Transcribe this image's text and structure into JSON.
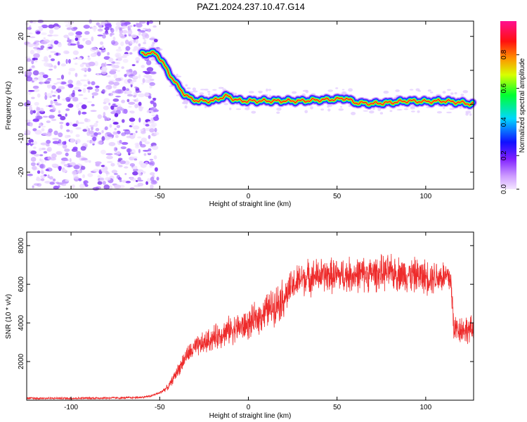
{
  "figure": {
    "title": "PAZ1.2024.237.10.47.G14"
  },
  "chart_data": [
    {
      "type": "heatmap",
      "xlabel": "Height of straight line (km)",
      "ylabel": "Frequency (Hz)",
      "xlim": [
        -125,
        127
      ],
      "ylim": [
        -25,
        24.5
      ],
      "xticks": [
        -100,
        -50,
        0,
        50,
        100
      ],
      "yticks": [
        -20,
        -10,
        0,
        10,
        20
      ],
      "colorbar": {
        "label": "Normalized spectral amplitude",
        "range": [
          0,
          1
        ],
        "ticks": [
          "0.0",
          "0.2",
          "0.4",
          "0.6",
          "0.8"
        ],
        "tick_values": [
          0.0,
          0.2,
          0.4,
          0.6,
          0.8
        ],
        "colormap": "rainbow (white–violet–blue–cyan–green–yellow–red–magenta)"
      },
      "ridge": {
        "x": [
          -60,
          -52,
          -48,
          -44,
          -40,
          -36,
          -32,
          -28,
          -24,
          -20,
          -15,
          -12,
          -8,
          -4,
          0,
          10,
          20,
          30,
          40,
          50,
          55,
          60,
          70,
          80,
          90,
          100,
          110,
          120,
          127
        ],
        "y": [
          15,
          15,
          12,
          8.5,
          5.5,
          3,
          1.5,
          1,
          1,
          1,
          2,
          2.5,
          1.5,
          1,
          1,
          1,
          1,
          1,
          1.3,
          1.5,
          1.8,
          0.5,
          0.2,
          0.5,
          1,
          0.8,
          1,
          0.5,
          0
        ]
      },
      "noise_region_x": [
        -125,
        -55
      ]
    },
    {
      "type": "line",
      "xlabel": "Height of straight line (km)",
      "ylabel": "SNR (10 * v/v)",
      "xlim": [
        -125,
        127
      ],
      "ylim": [
        0,
        8700
      ],
      "xticks": [
        -100,
        -50,
        0,
        50,
        100
      ],
      "yticks": [
        2000,
        4000,
        6000,
        8000
      ],
      "color": "#ee2b2b",
      "trend": {
        "x": [
          -125,
          -100,
          -70,
          -60,
          -55,
          -50,
          -45,
          -40,
          -35,
          -30,
          -20,
          -10,
          0,
          10,
          20,
          25,
          30,
          40,
          50,
          60,
          70,
          80,
          90,
          100,
          110,
          114,
          116,
          120,
          127
        ],
        "y": [
          100,
          100,
          120,
          150,
          220,
          380,
          700,
          1500,
          2300,
          2700,
          3200,
          3650,
          3900,
          4600,
          5300,
          5900,
          6300,
          6450,
          6450,
          6500,
          6550,
          6600,
          6500,
          6400,
          6400,
          6300,
          3700,
          3700,
          3600
        ]
      }
    }
  ]
}
